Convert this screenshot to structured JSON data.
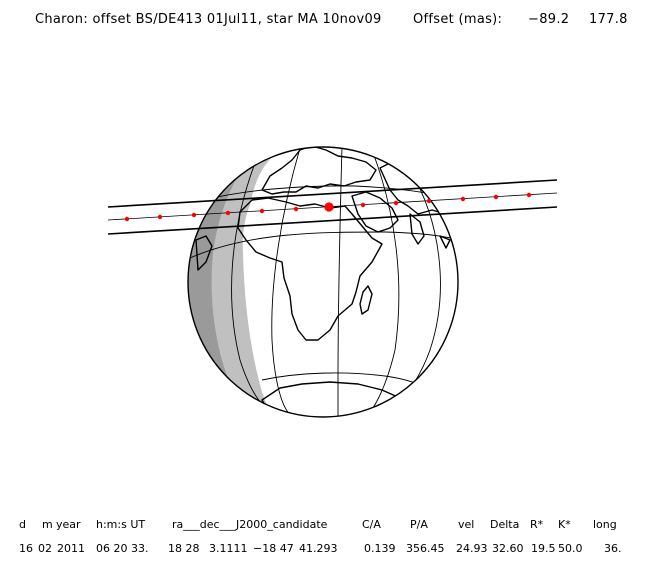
{
  "header": {
    "object": "Charon: offset BS/DE413 01Jul11, star MA 10nov09",
    "offset_label": "Offset (mas):",
    "offset_x": "−89.2",
    "offset_y": "177.8"
  },
  "table": {
    "headers": [
      "d",
      "m",
      "year",
      "h:m:s UT",
      "ra___dec___J2000_candidate",
      "C/A",
      "P/A",
      "vel",
      "Delta",
      "R*",
      "K*",
      "long"
    ],
    "values": [
      "16",
      "02",
      "2011",
      "06 20 33.",
      "18 28",
      "3.1111",
      "−18 47",
      "41.293",
      "0.139",
      "356.45",
      "24.93",
      "32.60",
      "19.5",
      "50.0",
      "36."
    ]
  },
  "colors": {
    "path_dots": "#ff0000",
    "night_shade": "#c0c0c0",
    "twilight_shade": "#9a9a9a",
    "lines": "#000000"
  }
}
